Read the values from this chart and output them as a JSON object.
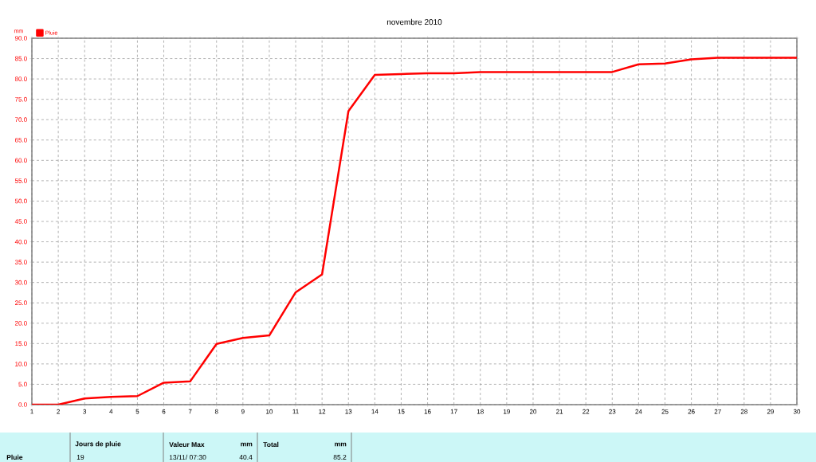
{
  "chart_data": {
    "type": "line",
    "title": "novembre 2010",
    "ylabel": "mm",
    "x": [
      1,
      2,
      3,
      4,
      5,
      6,
      7,
      8,
      9,
      10,
      11,
      12,
      13,
      14,
      15,
      16,
      17,
      18,
      19,
      20,
      21,
      22,
      23,
      24,
      25,
      26,
      27,
      28,
      29,
      30
    ],
    "series": [
      {
        "name": "Pluie",
        "color": "#ff0000",
        "values": [
          0,
          0,
          1.5,
          1.9,
          2.1,
          5.4,
          5.7,
          14.9,
          16.4,
          17.0,
          27.6,
          32.0,
          72.1,
          81.0,
          81.2,
          81.4,
          81.4,
          81.7,
          81.7,
          81.7,
          81.7,
          81.7,
          81.7,
          83.6,
          83.8,
          84.8,
          85.2,
          85.2,
          85.2,
          85.2
        ]
      }
    ],
    "xlim": [
      1,
      30
    ],
    "xticks": [
      1,
      2,
      3,
      4,
      5,
      6,
      7,
      8,
      9,
      10,
      11,
      12,
      13,
      14,
      15,
      16,
      17,
      18,
      19,
      20,
      21,
      22,
      23,
      24,
      25,
      26,
      27,
      28,
      29,
      30
    ],
    "ylim": [
      0,
      90
    ],
    "yticks": [
      {
        "value": 0,
        "label": "0.0"
      },
      {
        "value": 5,
        "label": "5.0"
      },
      {
        "value": 10,
        "label": "10.0"
      },
      {
        "value": 15,
        "label": "15.0"
      },
      {
        "value": 20,
        "label": "20.0"
      },
      {
        "value": 25,
        "label": "25.0"
      },
      {
        "value": 30,
        "label": "30.0"
      },
      {
        "value": 35,
        "label": "35.0"
      },
      {
        "value": 40,
        "label": "40.0"
      },
      {
        "value": 45,
        "label": "45.0"
      },
      {
        "value": 50,
        "label": "50.0"
      },
      {
        "value": 55,
        "label": "55.0"
      },
      {
        "value": 60,
        "label": "60.0"
      },
      {
        "value": 65,
        "label": "65.0"
      },
      {
        "value": 70,
        "label": "70.0"
      },
      {
        "value": 75,
        "label": "75.0"
      },
      {
        "value": 80,
        "label": "80.0"
      },
      {
        "value": 85,
        "label": "85.0"
      },
      {
        "value": 90,
        "label": "90.0"
      }
    ],
    "grid": true,
    "legend": "top left",
    "marker": "none",
    "line_style": "solid",
    "annotations": [
      "Pluie",
      "Jours de pluie",
      "19",
      "Valeur Max",
      "mm",
      "13/11/ 07:30",
      "40.4",
      "Total",
      "mm",
      "85.2"
    ]
  }
}
